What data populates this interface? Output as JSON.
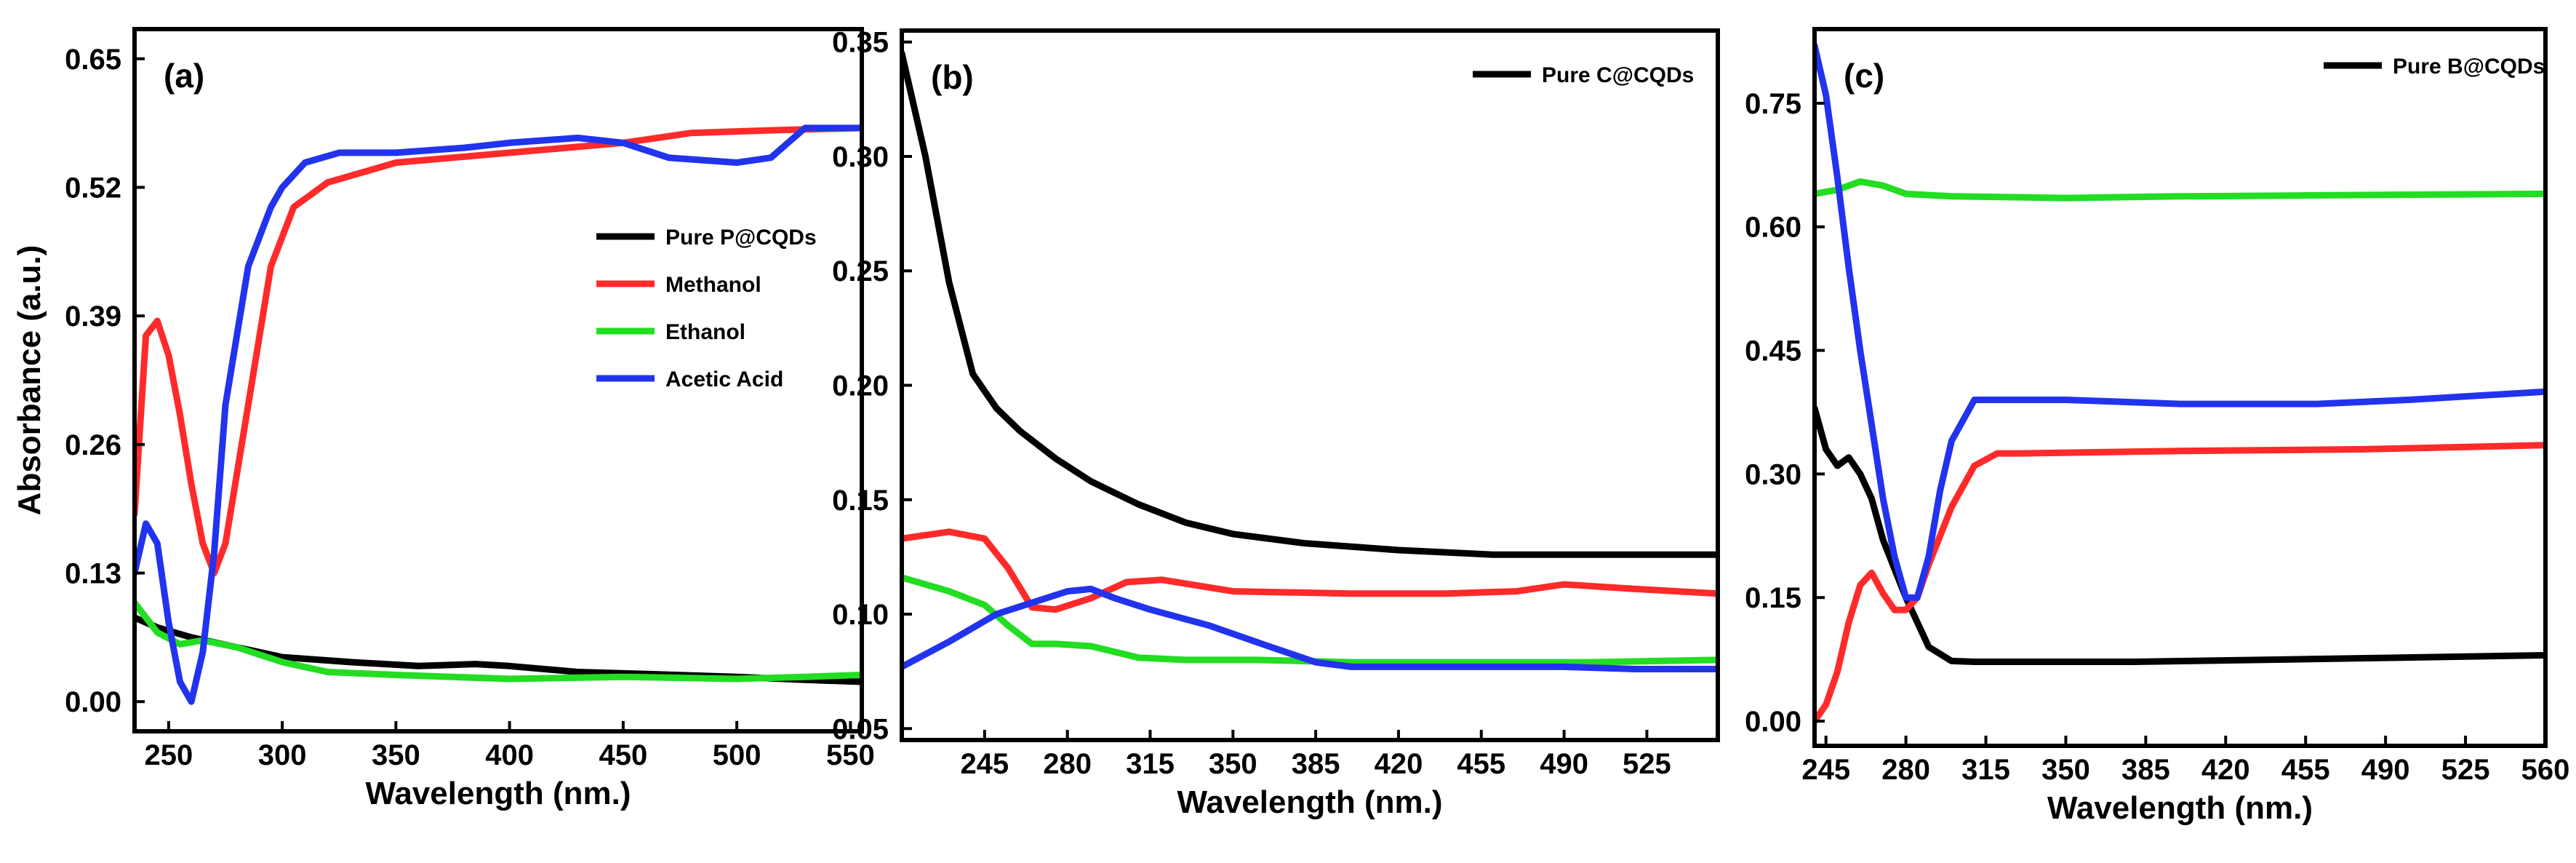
{
  "chart_data": [
    {
      "type": "line",
      "panel_label": "(a)",
      "xlabel": "Wavelength (nm.)",
      "ylabel": "Absorbance (a.u.)",
      "xlim": [
        235,
        555
      ],
      "ylim": [
        -0.03,
        0.68
      ],
      "xticks": [
        250,
        300,
        350,
        400,
        450,
        500,
        550
      ],
      "xtick_labels": [
        "250",
        "300",
        "350",
        "400",
        "450",
        "500",
        "550"
      ],
      "yticks": [
        0.0,
        0.13,
        0.26,
        0.39,
        0.52,
        0.65
      ],
      "ytick_labels": [
        "0.00",
        "0.13",
        "0.26",
        "0.39",
        "0.52",
        "0.65"
      ],
      "legend_position": "middle-right",
      "series": [
        {
          "name": "Pure P@CQDs",
          "color": "#000000",
          "x": [
            235,
            245,
            260,
            280,
            300,
            330,
            360,
            385,
            400,
            430,
            460,
            500,
            530,
            555
          ],
          "y": [
            0.085,
            0.075,
            0.065,
            0.055,
            0.045,
            0.04,
            0.036,
            0.038,
            0.036,
            0.03,
            0.028,
            0.025,
            0.022,
            0.02
          ]
        },
        {
          "name": "Methanol",
          "color": "#ff2a2a",
          "x": [
            235,
            240,
            245,
            250,
            255,
            260,
            265,
            270,
            275,
            285,
            295,
            305,
            320,
            350,
            400,
            450,
            480,
            520,
            555
          ],
          "y": [
            0.19,
            0.37,
            0.385,
            0.35,
            0.29,
            0.22,
            0.16,
            0.13,
            0.16,
            0.3,
            0.44,
            0.5,
            0.525,
            0.545,
            0.555,
            0.565,
            0.575,
            0.578,
            0.58
          ]
        },
        {
          "name": "Ethanol",
          "color": "#22dd22",
          "x": [
            235,
            245,
            255,
            265,
            280,
            300,
            320,
            350,
            400,
            450,
            500,
            530,
            555
          ],
          "y": [
            0.1,
            0.07,
            0.058,
            0.062,
            0.055,
            0.04,
            0.03,
            0.027,
            0.023,
            0.025,
            0.023,
            0.025,
            0.027
          ]
        },
        {
          "name": "Acetic Acid",
          "color": "#2233ee",
          "x": [
            235,
            240,
            245,
            250,
            255,
            260,
            265,
            270,
            275,
            285,
            295,
            300,
            310,
            325,
            350,
            380,
            400,
            430,
            450,
            470,
            500,
            515,
            530,
            545,
            555
          ],
          "y": [
            0.13,
            0.18,
            0.16,
            0.08,
            0.02,
            0.0,
            0.05,
            0.15,
            0.3,
            0.44,
            0.5,
            0.52,
            0.545,
            0.555,
            0.555,
            0.56,
            0.565,
            0.57,
            0.565,
            0.55,
            0.545,
            0.55,
            0.58,
            0.58,
            0.58
          ]
        }
      ]
    },
    {
      "type": "line",
      "panel_label": "(b)",
      "xlabel": "Wavelength (nm.)",
      "ylabel": "",
      "xlim": [
        210,
        555
      ],
      "ylim": [
        0.045,
        0.355
      ],
      "xticks": [
        245,
        280,
        315,
        350,
        385,
        420,
        455,
        490,
        525
      ],
      "xtick_labels": [
        "245",
        "280",
        "315",
        "350",
        "385",
        "420",
        "455",
        "490",
        "525"
      ],
      "yticks": [
        0.05,
        0.1,
        0.15,
        0.2,
        0.25,
        0.3,
        0.35
      ],
      "ytick_labels": [
        "0.05",
        "0.10",
        "0.15",
        "0.20",
        "0.25",
        "0.30",
        "0.35"
      ],
      "legend_position": "top-right",
      "series": [
        {
          "name": "Pure C@CQDs",
          "color": "#000000",
          "legend": true,
          "x": [
            210,
            220,
            230,
            240,
            250,
            260,
            275,
            290,
            310,
            330,
            350,
            380,
            420,
            460,
            500,
            555
          ],
          "y": [
            0.345,
            0.3,
            0.245,
            0.205,
            0.19,
            0.18,
            0.168,
            0.158,
            0.148,
            0.14,
            0.135,
            0.131,
            0.128,
            0.126,
            0.126,
            0.126
          ]
        },
        {
          "name": "Red",
          "color": "#ff2a2a",
          "legend": false,
          "x": [
            210,
            230,
            245,
            255,
            265,
            275,
            290,
            305,
            320,
            350,
            400,
            440,
            470,
            490,
            520,
            555
          ],
          "y": [
            0.133,
            0.136,
            0.133,
            0.12,
            0.103,
            0.102,
            0.107,
            0.114,
            0.115,
            0.11,
            0.109,
            0.109,
            0.11,
            0.113,
            0.111,
            0.109
          ]
        },
        {
          "name": "Green",
          "color": "#22dd22",
          "legend": false,
          "x": [
            210,
            230,
            245,
            255,
            265,
            275,
            290,
            310,
            330,
            360,
            400,
            450,
            500,
            555
          ],
          "y": [
            0.116,
            0.11,
            0.104,
            0.095,
            0.087,
            0.087,
            0.086,
            0.081,
            0.08,
            0.08,
            0.079,
            0.079,
            0.079,
            0.08
          ]
        },
        {
          "name": "Blue",
          "color": "#2233ee",
          "legend": false,
          "x": [
            210,
            230,
            250,
            265,
            280,
            290,
            300,
            315,
            340,
            365,
            385,
            400,
            430,
            460,
            490,
            520,
            555
          ],
          "y": [
            0.077,
            0.088,
            0.1,
            0.105,
            0.11,
            0.111,
            0.107,
            0.102,
            0.095,
            0.086,
            0.079,
            0.077,
            0.077,
            0.077,
            0.077,
            0.076,
            0.076
          ]
        }
      ]
    },
    {
      "type": "line",
      "panel_label": "(c)",
      "xlabel": "Wavelength (nm.)",
      "ylabel": "",
      "xlim": [
        240,
        560
      ],
      "ylim": [
        -0.03,
        0.84
      ],
      "xticks": [
        245,
        280,
        315,
        350,
        385,
        420,
        455,
        490,
        525,
        560
      ],
      "xtick_labels": [
        "245",
        "280",
        "315",
        "350",
        "385",
        "420",
        "455",
        "490",
        "525",
        "560"
      ],
      "yticks": [
        0.0,
        0.15,
        0.3,
        0.45,
        0.6,
        0.75
      ],
      "ytick_labels": [
        "0.00",
        "0.15",
        "0.30",
        "0.45",
        "0.60",
        "0.75"
      ],
      "legend_position": "top-right",
      "series": [
        {
          "name": "Pure B@CQDs",
          "color": "#000000",
          "legend": true,
          "x": [
            240,
            245,
            250,
            255,
            260,
            265,
            270,
            280,
            290,
            300,
            310,
            330,
            380,
            450,
            560
          ],
          "y": [
            0.38,
            0.33,
            0.31,
            0.32,
            0.3,
            0.27,
            0.22,
            0.15,
            0.09,
            0.073,
            0.072,
            0.072,
            0.072,
            0.075,
            0.08
          ]
        },
        {
          "name": "Red",
          "color": "#ff2a2a",
          "legend": false,
          "x": [
            240,
            245,
            250,
            255,
            260,
            265,
            270,
            275,
            280,
            285,
            290,
            300,
            310,
            320,
            330,
            400,
            480,
            560
          ],
          "y": [
            0.0,
            0.02,
            0.06,
            0.12,
            0.165,
            0.18,
            0.155,
            0.135,
            0.135,
            0.15,
            0.19,
            0.26,
            0.31,
            0.325,
            0.325,
            0.328,
            0.33,
            0.335
          ]
        },
        {
          "name": "Green",
          "color": "#22dd22",
          "legend": false,
          "x": [
            240,
            250,
            260,
            270,
            280,
            300,
            350,
            400,
            450,
            500,
            560
          ],
          "y": [
            0.64,
            0.645,
            0.655,
            0.65,
            0.64,
            0.637,
            0.635,
            0.637,
            0.638,
            0.639,
            0.64
          ]
        },
        {
          "name": "Blue",
          "color": "#2233ee",
          "legend": false,
          "x": [
            240,
            245,
            250,
            255,
            260,
            265,
            270,
            275,
            280,
            285,
            290,
            295,
            300,
            310,
            320,
            350,
            400,
            420,
            460,
            500,
            560
          ],
          "y": [
            0.82,
            0.76,
            0.66,
            0.55,
            0.45,
            0.36,
            0.27,
            0.2,
            0.15,
            0.15,
            0.2,
            0.28,
            0.34,
            0.39,
            0.39,
            0.39,
            0.385,
            0.385,
            0.385,
            0.39,
            0.4
          ]
        }
      ]
    }
  ]
}
